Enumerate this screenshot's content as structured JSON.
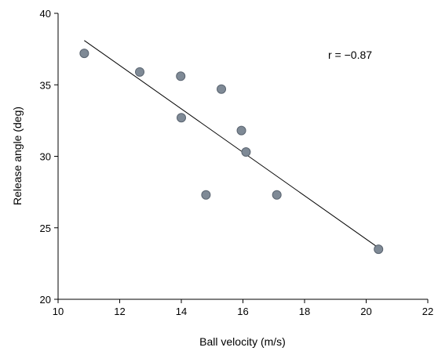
{
  "chart_data": {
    "type": "scatter",
    "xlabel": "Ball velocity (m/s)",
    "ylabel": "Release angle (deg)",
    "xlim": [
      10,
      22
    ],
    "ylim": [
      20,
      40
    ],
    "x_ticks": [
      "10",
      "12",
      "14",
      "16",
      "18",
      "20",
      "22"
    ],
    "y_ticks": [
      "20",
      "25",
      "30",
      "35",
      "40"
    ],
    "grid": false,
    "series": [
      {
        "x": [
          10.85,
          12.65,
          13.98,
          14.0,
          14.8,
          15.3,
          15.95,
          16.1,
          17.1,
          20.4
        ],
        "y": [
          37.2,
          35.9,
          35.6,
          32.7,
          27.3,
          34.7,
          31.8,
          30.3,
          27.3,
          23.5
        ],
        "color": "#7f8a96"
      }
    ],
    "trendline": {
      "x": [
        10.85,
        20.4
      ],
      "y": [
        38.1,
        23.6
      ],
      "color": "#000000"
    },
    "annotation": "r = −0.87"
  }
}
